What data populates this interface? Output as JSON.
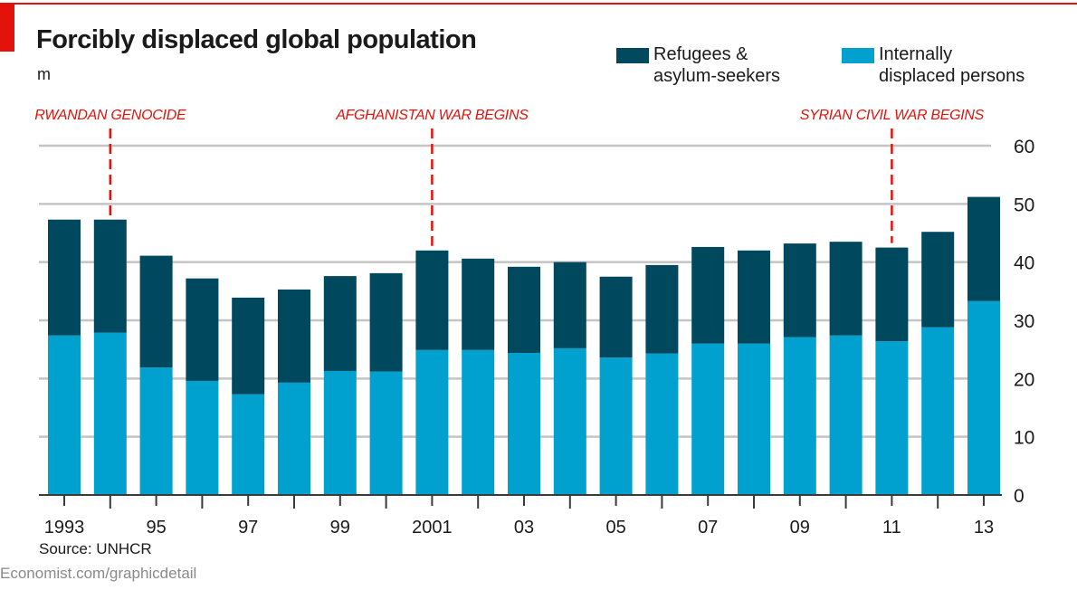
{
  "header": {
    "title": "Forcibly displaced global population",
    "unit": "m"
  },
  "legend": [
    {
      "label": "Refugees &\nasylum-seekers",
      "color": "#00485e"
    },
    {
      "label": "Internally\ndisplaced persons",
      "color": "#00a1cf"
    }
  ],
  "annotations": [
    {
      "label": "RWANDAN GENOCIDE",
      "year": 1994
    },
    {
      "label": "AFGHANISTAN WAR BEGINS",
      "year": 2001
    },
    {
      "label": "SYRIAN CIVIL WAR BEGINS",
      "year": 2011
    }
  ],
  "colors": {
    "accent": "#e3120b",
    "refugees": "#00485e",
    "idp": "#00a1cf",
    "grid": "#c4c4c4",
    "axis": "#3a3a3a"
  },
  "footer": {
    "source": "Source: UNHCR",
    "credit": "Economist.com/graphicdetail"
  },
  "chart_data": {
    "type": "bar",
    "stacked": true,
    "title": "Forcibly displaced global population",
    "ylabel": "m",
    "xlabel": "",
    "ylim": [
      0,
      60
    ],
    "yticks": [
      0,
      10,
      20,
      30,
      40,
      50,
      60
    ],
    "y_axis_side": "right",
    "grid": true,
    "legend_position": "top-right",
    "categories": [
      1993,
      1994,
      1995,
      1996,
      1997,
      1998,
      1999,
      2000,
      2001,
      2002,
      2003,
      2004,
      2005,
      2006,
      2007,
      2008,
      2009,
      2010,
      2011,
      2012,
      2013
    ],
    "xtick_labels": [
      {
        "year": 1993,
        "label": "1993"
      },
      {
        "year": 1995,
        "label": "95"
      },
      {
        "year": 1997,
        "label": "97"
      },
      {
        "year": 1999,
        "label": "99"
      },
      {
        "year": 2001,
        "label": "2001"
      },
      {
        "year": 2003,
        "label": "03"
      },
      {
        "year": 2005,
        "label": "05"
      },
      {
        "year": 2007,
        "label": "07"
      },
      {
        "year": 2009,
        "label": "09"
      },
      {
        "year": 2011,
        "label": "11"
      },
      {
        "year": 2013,
        "label": "13"
      }
    ],
    "series": [
      {
        "name": "Internally displaced persons",
        "color": "#00a1cf",
        "values": [
          27.4,
          27.9,
          21.9,
          19.6,
          17.3,
          19.3,
          21.3,
          21.2,
          24.9,
          24.9,
          24.4,
          25.2,
          23.6,
          24.3,
          26.0,
          26.0,
          27.1,
          27.4,
          26.4,
          28.8,
          33.3
        ]
      },
      {
        "name": "Refugees & asylum-seekers",
        "color": "#00485e",
        "values": [
          19.9,
          19.4,
          19.2,
          17.6,
          16.6,
          16.0,
          16.3,
          16.9,
          17.1,
          15.7,
          14.8,
          14.8,
          13.9,
          15.2,
          16.6,
          16.0,
          16.1,
          16.1,
          16.1,
          16.4,
          17.9
        ]
      }
    ],
    "totals": [
      47.3,
      47.3,
      41.1,
      37.2,
      33.9,
      35.3,
      37.6,
      38.1,
      42.0,
      40.6,
      39.2,
      40.0,
      37.5,
      39.5,
      42.6,
      42.0,
      43.2,
      43.5,
      42.5,
      45.2,
      51.2
    ]
  }
}
